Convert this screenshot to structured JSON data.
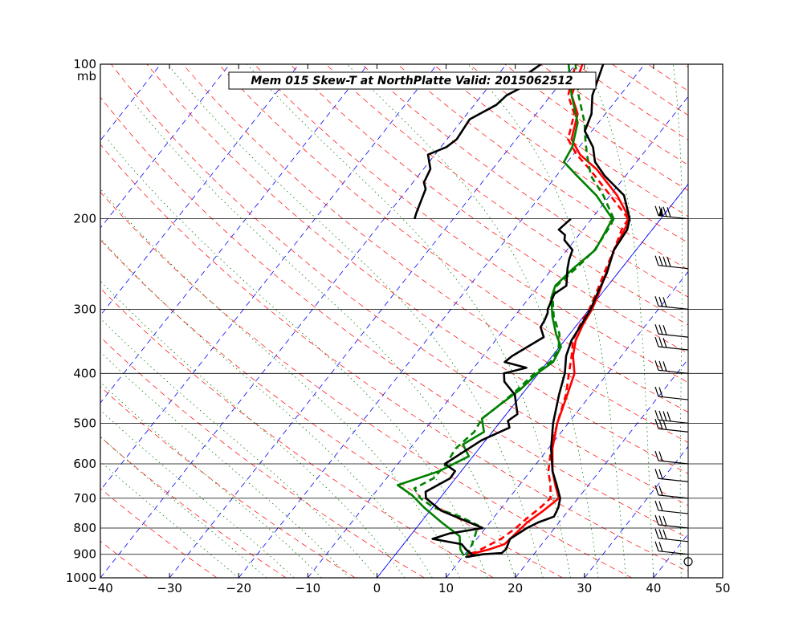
{
  "chart_data": {
    "type": "line",
    "title": "Mem 015  Skew-T at NorthPlatte   Valid: 2015062512",
    "ylabel_unit": "mb",
    "xlim": [
      -40,
      50
    ],
    "ylim": [
      1000,
      100
    ],
    "y_scale": "log",
    "x_ticks": [
      -40,
      -30,
      -20,
      -10,
      0,
      10,
      20,
      30,
      40,
      50
    ],
    "x_tick_labels": [
      "−40",
      "−30",
      "−20",
      "−10",
      "0",
      "10",
      "20",
      "30",
      "40",
      "50"
    ],
    "y_ticks": [
      100,
      200,
      300,
      400,
      500,
      600,
      700,
      800,
      900,
      1000
    ],
    "y_tick_labels": [
      "100",
      "200",
      "300",
      "400",
      "500",
      "600",
      "700",
      "800",
      "900",
      "1000"
    ],
    "grid": "isobars",
    "colors": {
      "temperature": "#ff0000",
      "dewpoint": "#008000",
      "alt_profile": "#000000",
      "dry_adiabat": "#ff0000",
      "isotherm": "#0000ff",
      "moist_adiabat": "#008000"
    },
    "series": [
      {
        "id": "temp_solid",
        "points": [
          [
            -4.5,
            200
          ],
          [
            -4.0,
            210
          ],
          [
            -3.2,
            230
          ],
          [
            -1.7,
            255
          ],
          [
            -0.4,
            280
          ],
          [
            0.4,
            300
          ],
          [
            0.8,
            320
          ],
          [
            1.6,
            345
          ],
          [
            3.0,
            370
          ],
          [
            5.2,
            400
          ],
          [
            6.6,
            440
          ],
          [
            8.4,
            500
          ],
          [
            10.6,
            560
          ],
          [
            13.2,
            620
          ],
          [
            15.2,
            660
          ],
          [
            17.2,
            700
          ],
          [
            16.4,
            740
          ],
          [
            15.4,
            780
          ],
          [
            15.0,
            820
          ],
          [
            14.6,
            860
          ],
          [
            13.0,
            880
          ],
          [
            11.6,
            893
          ],
          [
            10.4,
            901
          ]
        ]
      },
      {
        "id": "temp_dashed",
        "points": [
          [
            -4.7,
            200
          ],
          [
            -4.4,
            210
          ],
          [
            -3.2,
            230
          ],
          [
            -2.0,
            255
          ],
          [
            -0.8,
            280
          ],
          [
            0.0,
            300
          ],
          [
            0.4,
            320
          ],
          [
            1.2,
            345
          ],
          [
            2.8,
            370
          ],
          [
            4.4,
            400
          ],
          [
            6.4,
            440
          ],
          [
            8.4,
            500
          ],
          [
            10.4,
            560
          ],
          [
            12.6,
            620
          ],
          [
            14.5,
            660
          ],
          [
            16.0,
            700
          ],
          [
            15.6,
            730
          ],
          [
            14.8,
            770
          ],
          [
            14.4,
            800
          ],
          [
            13.5,
            840
          ],
          [
            12.2,
            870
          ],
          [
            11.4,
            890
          ],
          [
            10.4,
            901
          ]
        ]
      },
      {
        "id": "dew_solid",
        "points": [
          [
            -7.0,
            200
          ],
          [
            -6.6,
            210
          ],
          [
            -5.9,
            230
          ],
          [
            -7.0,
            250
          ],
          [
            -7.6,
            270
          ],
          [
            -6.8,
            285
          ],
          [
            -4.5,
            310
          ],
          [
            -2.0,
            335
          ],
          [
            0.2,
            355
          ],
          [
            0.8,
            380
          ],
          [
            -0.2,
            400
          ],
          [
            -0.8,
            430
          ],
          [
            -2.0,
            460
          ],
          [
            -3.0,
            490
          ],
          [
            -1.2,
            520
          ],
          [
            -2.8,
            550
          ],
          [
            -0.6,
            580
          ],
          [
            -3.2,
            620
          ],
          [
            -7.6,
            660
          ],
          [
            -4.4,
            690
          ],
          [
            -1.2,
            730
          ],
          [
            3.0,
            780
          ],
          [
            7.2,
            830
          ],
          [
            8.8,
            880
          ],
          [
            10.0,
            905
          ]
        ]
      },
      {
        "id": "dew_dashed",
        "points": [
          [
            -6.8,
            200
          ],
          [
            -6.4,
            210
          ],
          [
            -6.0,
            230
          ],
          [
            -6.6,
            250
          ],
          [
            -7.4,
            270
          ],
          [
            -6.6,
            285
          ],
          [
            -4.3,
            310
          ],
          [
            -1.5,
            335
          ],
          [
            0.2,
            360
          ],
          [
            0.4,
            380
          ],
          [
            -0.6,
            400
          ],
          [
            -1.2,
            430
          ],
          [
            -2.0,
            460
          ],
          [
            -3.0,
            490
          ],
          [
            -2.6,
            520
          ],
          [
            -3.4,
            560
          ],
          [
            -3.0,
            600
          ],
          [
            -3.2,
            640
          ],
          [
            -4.8,
            670
          ],
          [
            -2.8,
            700
          ],
          [
            0.2,
            730
          ],
          [
            5.0,
            760
          ],
          [
            8.6,
            790
          ],
          [
            9.6,
            840
          ],
          [
            10.2,
            880
          ],
          [
            10.4,
            905
          ]
        ]
      },
      {
        "id": "black_left",
        "points": [
          [
            -13.0,
            200
          ],
          [
            -13.5,
            210
          ],
          [
            -12.0,
            215
          ],
          [
            -11.5,
            220
          ],
          [
            -9.2,
            230
          ],
          [
            -8.6,
            240
          ],
          [
            -7.8,
            250
          ],
          [
            -6.0,
            270
          ],
          [
            -6.8,
            280
          ],
          [
            -6.0,
            300
          ],
          [
            -5.6,
            305
          ],
          [
            -5.2,
            315
          ],
          [
            -5.0,
            325
          ],
          [
            -3.4,
            340
          ],
          [
            -5.8,
            370
          ],
          [
            -6.2,
            380
          ],
          [
            -2.4,
            390
          ],
          [
            -5.0,
            400
          ],
          [
            -4.0,
            415
          ],
          [
            -1.0,
            440
          ],
          [
            1.6,
            480
          ],
          [
            1.0,
            495
          ],
          [
            2.0,
            510
          ],
          [
            -0.6,
            540
          ],
          [
            -3.2,
            600
          ],
          [
            -0.9,
            620
          ],
          [
            -0.8,
            640
          ],
          [
            -2.8,
            680
          ],
          [
            -2.0,
            700
          ],
          [
            1.6,
            740
          ],
          [
            7.0,
            780
          ],
          [
            9.6,
            800
          ],
          [
            5.4,
            820
          ],
          [
            3.6,
            840
          ],
          [
            8.4,
            860
          ],
          [
            9.6,
            880
          ],
          [
            11.4,
            905
          ],
          [
            10.8,
            911
          ]
        ]
      },
      {
        "id": "black_right",
        "points": [
          [
            -4.5,
            200
          ],
          [
            -3.6,
            210
          ],
          [
            -3.2,
            230
          ],
          [
            -1.6,
            255
          ],
          [
            -0.6,
            280
          ],
          [
            0.2,
            300
          ],
          [
            0.6,
            320
          ],
          [
            1.0,
            345
          ],
          [
            2.0,
            370
          ],
          [
            3.8,
            400
          ],
          [
            5.4,
            440
          ],
          [
            7.8,
            500
          ],
          [
            10.4,
            560
          ],
          [
            13.2,
            620
          ],
          [
            15.4,
            660
          ],
          [
            17.4,
            700
          ],
          [
            18.2,
            730
          ],
          [
            18.6,
            760
          ],
          [
            17.8,
            770
          ],
          [
            17.0,
            780
          ],
          [
            16.0,
            800
          ],
          [
            14.8,
            840
          ],
          [
            15.4,
            880
          ],
          [
            15.2,
            895
          ],
          [
            12.6,
            900
          ],
          [
            11.6,
            905
          ],
          [
            10.4,
            911
          ]
        ]
      },
      {
        "id": "black_upper",
        "points": [
          [
            -35.0,
            100
          ],
          [
            -36.0,
            105
          ],
          [
            -34.8,
            110
          ],
          [
            -36.4,
            115
          ],
          [
            -36.8,
            120
          ],
          [
            -39.0,
            128
          ],
          [
            -38.6,
            140
          ],
          [
            -39.2,
            145
          ],
          [
            -41.0,
            150
          ],
          [
            -39.0,
            160
          ],
          [
            -38.4,
            170
          ],
          [
            -37.4,
            175
          ],
          [
            -36.0,
            195
          ],
          [
            -35.6,
            200
          ]
        ]
      }
    ],
    "winds": [
      {
        "p": 200,
        "barbs": [
          1,
          1,
          1,
          1
        ],
        "pennant": true
      },
      {
        "p": 250,
        "barbs": [
          1,
          1,
          1,
          1
        ]
      },
      {
        "p": 300,
        "barbs": [
          1,
          1,
          1
        ]
      },
      {
        "p": 340,
        "barbs": [
          1,
          1,
          1
        ]
      },
      {
        "p": 360,
        "barbs": [
          1,
          1,
          1
        ]
      },
      {
        "p": 400,
        "barbs": [
          1,
          1,
          1
        ]
      },
      {
        "p": 450,
        "barbs": [
          1,
          1
        ]
      },
      {
        "p": 500,
        "barbs": [
          1,
          1,
          1,
          1
        ]
      },
      {
        "p": 520,
        "barbs": [
          1,
          1,
          1
        ]
      },
      {
        "p": 600,
        "barbs": [
          1,
          1
        ]
      },
      {
        "p": 650,
        "barbs": [
          1,
          1
        ]
      },
      {
        "p": 700,
        "barbs": [
          1,
          1
        ]
      },
      {
        "p": 750,
        "barbs": [
          1,
          1
        ]
      },
      {
        "p": 800,
        "barbs": [
          1,
          1,
          1
        ]
      },
      {
        "p": 850,
        "barbs": [
          1,
          1,
          1
        ]
      },
      {
        "p": 900,
        "barbs": [
          1,
          1
        ]
      }
    ],
    "calm_marker": {
      "p": 910
    }
  }
}
